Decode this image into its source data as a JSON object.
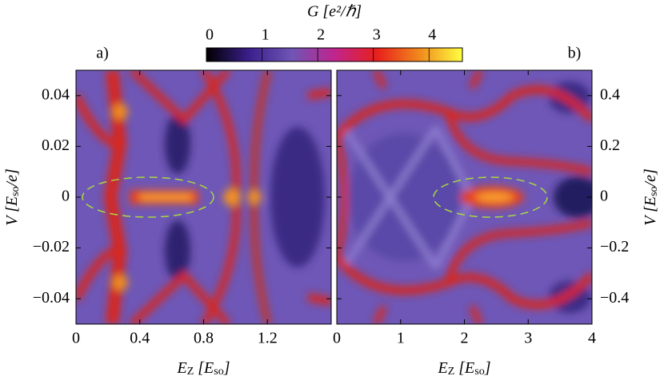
{
  "colorbar": {
    "label": "G [e²/ℏ]",
    "lim": [
      0,
      4.6
    ],
    "ticks": [
      0,
      1,
      2,
      3,
      4
    ],
    "colormap": [
      "#000000",
      "#3b1f8c",
      "#6f55b5",
      "#c0248e",
      "#e8201c",
      "#f08a1c",
      "#ffff40"
    ]
  },
  "chart_data": [
    {
      "type": "heatmap",
      "panel_label": "a)",
      "xlabel": [
        {
          "text": "E"
        },
        {
          "text": "Z",
          "sub": true
        },
        {
          "text": " [E"
        },
        {
          "text": "so",
          "sub": true
        },
        {
          "text": "]"
        }
      ],
      "ylabel": [
        {
          "text": "V [E"
        },
        {
          "text": "so",
          "sub": true
        },
        {
          "text": "/e]"
        }
      ],
      "xlim": [
        0,
        1.6
      ],
      "ylim": [
        -0.05,
        0.05
      ],
      "xticks": [
        0,
        0.4,
        0.8,
        1.2
      ],
      "yticks": [
        {
          "value": -0.04,
          "label": "−0.04"
        },
        {
          "value": -0.02,
          "label": "−0.02"
        },
        0,
        0.02,
        0.04
      ],
      "ytick_side": "left"
    },
    {
      "type": "heatmap",
      "panel_label": "b)",
      "xlabel": [
        {
          "text": "E"
        },
        {
          "text": "Z",
          "sub": true
        },
        {
          "text": " [E"
        },
        {
          "text": "so",
          "sub": true
        },
        {
          "text": "]"
        }
      ],
      "ylabel": [
        {
          "text": "V [E"
        },
        {
          "text": "so",
          "sub": true
        },
        {
          "text": "/e]"
        }
      ],
      "xlim": [
        0,
        4
      ],
      "ylim": [
        -0.5,
        0.5
      ],
      "xticks": [
        0,
        1,
        2,
        3,
        4
      ],
      "yticks": [
        {
          "value": -0.4,
          "label": "−0.4"
        },
        {
          "value": -0.2,
          "label": "−0.2"
        },
        0,
        0.2,
        0.4
      ],
      "ytick_side": "right"
    }
  ]
}
